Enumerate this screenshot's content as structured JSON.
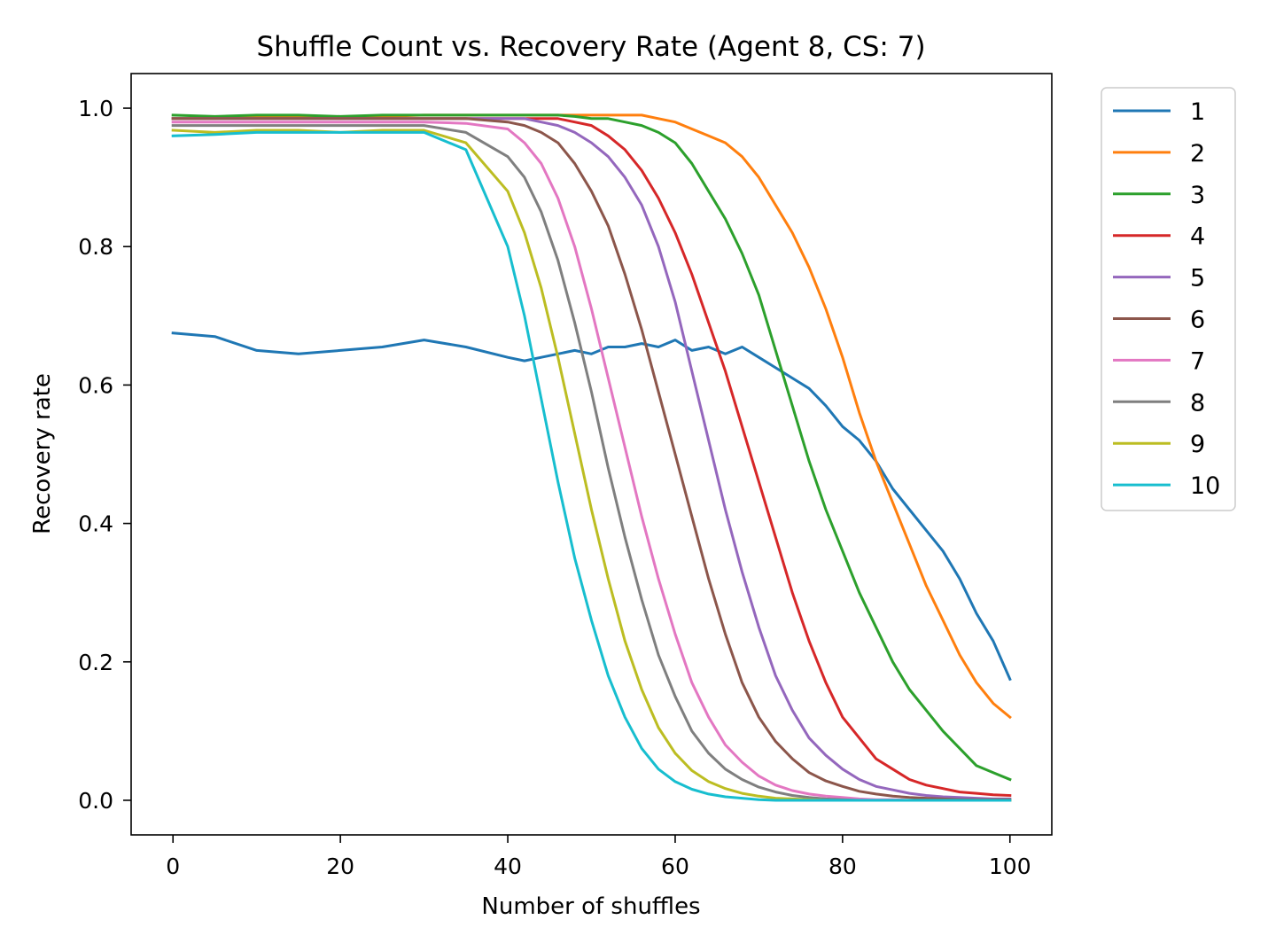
{
  "chart_data": {
    "type": "line",
    "title": "Shuffle Count vs. Recovery Rate (Agent 8, CS: 7)",
    "xlabel": "Number of shuffles",
    "ylabel": "Recovery rate",
    "xlim": [
      -5,
      105
    ],
    "ylim": [
      -0.05,
      1.05
    ],
    "xticks": [
      0,
      20,
      40,
      60,
      80,
      100
    ],
    "xtick_labels": [
      "0",
      "20",
      "40",
      "60",
      "80",
      "100"
    ],
    "yticks": [
      0.0,
      0.2,
      0.4,
      0.6,
      0.8,
      1.0
    ],
    "ytick_labels": [
      "0.0",
      "0.2",
      "0.4",
      "0.6",
      "0.8",
      "1.0"
    ],
    "grid": false,
    "legend_position": "outside-right-top",
    "x": [
      0,
      5,
      10,
      15,
      20,
      25,
      30,
      35,
      40,
      42,
      44,
      46,
      48,
      50,
      52,
      54,
      56,
      58,
      60,
      62,
      64,
      66,
      68,
      70,
      72,
      74,
      76,
      78,
      80,
      82,
      84,
      86,
      88,
      90,
      92,
      94,
      96,
      98,
      100
    ],
    "series": [
      {
        "name": "1",
        "color": "#1f77b4",
        "values": [
          0.675,
          0.67,
          0.65,
          0.645,
          0.65,
          0.655,
          0.665,
          0.655,
          0.64,
          0.635,
          0.64,
          0.645,
          0.65,
          0.645,
          0.655,
          0.655,
          0.66,
          0.655,
          0.665,
          0.65,
          0.655,
          0.645,
          0.655,
          0.64,
          0.625,
          0.61,
          0.595,
          0.57,
          0.54,
          0.52,
          0.49,
          0.45,
          0.42,
          0.39,
          0.36,
          0.32,
          0.27,
          0.23,
          0.175
        ]
      },
      {
        "name": "2",
        "color": "#ff7f0e",
        "values": [
          0.985,
          0.985,
          0.988,
          0.988,
          0.985,
          0.988,
          0.99,
          0.99,
          0.99,
          0.99,
          0.99,
          0.99,
          0.99,
          0.99,
          0.99,
          0.99,
          0.99,
          0.985,
          0.98,
          0.97,
          0.96,
          0.95,
          0.93,
          0.9,
          0.86,
          0.82,
          0.77,
          0.71,
          0.64,
          0.56,
          0.49,
          0.43,
          0.37,
          0.31,
          0.26,
          0.21,
          0.17,
          0.14,
          0.12
        ]
      },
      {
        "name": "3",
        "color": "#2ca02c",
        "values": [
          0.99,
          0.988,
          0.99,
          0.99,
          0.988,
          0.99,
          0.99,
          0.99,
          0.99,
          0.99,
          0.99,
          0.99,
          0.988,
          0.985,
          0.985,
          0.98,
          0.975,
          0.965,
          0.95,
          0.92,
          0.88,
          0.84,
          0.79,
          0.73,
          0.65,
          0.57,
          0.49,
          0.42,
          0.36,
          0.3,
          0.25,
          0.2,
          0.16,
          0.13,
          0.1,
          0.075,
          0.05,
          0.04,
          0.03
        ]
      },
      {
        "name": "4",
        "color": "#d62728",
        "values": [
          0.985,
          0.985,
          0.985,
          0.985,
          0.985,
          0.985,
          0.985,
          0.985,
          0.985,
          0.985,
          0.985,
          0.985,
          0.98,
          0.975,
          0.96,
          0.94,
          0.91,
          0.87,
          0.82,
          0.76,
          0.69,
          0.62,
          0.54,
          0.46,
          0.38,
          0.3,
          0.23,
          0.17,
          0.12,
          0.09,
          0.06,
          0.045,
          0.03,
          0.022,
          0.017,
          0.012,
          0.01,
          0.008,
          0.007
        ]
      },
      {
        "name": "5",
        "color": "#9467bd",
        "values": [
          0.985,
          0.985,
          0.985,
          0.985,
          0.985,
          0.985,
          0.985,
          0.985,
          0.985,
          0.985,
          0.98,
          0.975,
          0.965,
          0.95,
          0.93,
          0.9,
          0.86,
          0.8,
          0.72,
          0.62,
          0.52,
          0.42,
          0.33,
          0.25,
          0.18,
          0.13,
          0.09,
          0.065,
          0.045,
          0.03,
          0.02,
          0.015,
          0.01,
          0.007,
          0.005,
          0.004,
          0.003,
          0.002,
          0.002
        ]
      },
      {
        "name": "6",
        "color": "#8c564b",
        "values": [
          0.985,
          0.985,
          0.985,
          0.985,
          0.985,
          0.985,
          0.985,
          0.985,
          0.98,
          0.975,
          0.965,
          0.95,
          0.92,
          0.88,
          0.83,
          0.76,
          0.68,
          0.59,
          0.5,
          0.41,
          0.32,
          0.24,
          0.17,
          0.12,
          0.085,
          0.06,
          0.04,
          0.028,
          0.02,
          0.013,
          0.009,
          0.006,
          0.004,
          0.003,
          0.002,
          0.001,
          0.001,
          0.001,
          0.001
        ]
      },
      {
        "name": "7",
        "color": "#e377c2",
        "values": [
          0.98,
          0.98,
          0.98,
          0.98,
          0.98,
          0.98,
          0.98,
          0.978,
          0.97,
          0.95,
          0.92,
          0.87,
          0.8,
          0.71,
          0.61,
          0.51,
          0.41,
          0.32,
          0.24,
          0.17,
          0.12,
          0.08,
          0.055,
          0.035,
          0.022,
          0.014,
          0.009,
          0.006,
          0.004,
          0.002,
          0.001,
          0.001,
          0.0,
          0.0,
          0.0,
          0.0,
          0.0,
          0.0,
          0.0
        ]
      },
      {
        "name": "8",
        "color": "#7f7f7f",
        "values": [
          0.975,
          0.975,
          0.975,
          0.975,
          0.975,
          0.975,
          0.975,
          0.965,
          0.93,
          0.9,
          0.85,
          0.78,
          0.69,
          0.59,
          0.48,
          0.38,
          0.29,
          0.21,
          0.15,
          0.1,
          0.068,
          0.045,
          0.03,
          0.019,
          0.012,
          0.007,
          0.004,
          0.002,
          0.001,
          0.0,
          0.0,
          0.0,
          0.0,
          0.0,
          0.0,
          0.0,
          0.0,
          0.0,
          0.0
        ]
      },
      {
        "name": "9",
        "color": "#bcbd22",
        "values": [
          0.968,
          0.965,
          0.968,
          0.968,
          0.965,
          0.968,
          0.968,
          0.95,
          0.88,
          0.82,
          0.74,
          0.64,
          0.53,
          0.42,
          0.32,
          0.23,
          0.16,
          0.105,
          0.068,
          0.043,
          0.027,
          0.017,
          0.01,
          0.006,
          0.003,
          0.002,
          0.001,
          0.0,
          0.0,
          0.0,
          0.0,
          0.0,
          0.0,
          0.0,
          0.0,
          0.0,
          0.0,
          0.0,
          0.0
        ]
      },
      {
        "name": "10",
        "color": "#17becf",
        "values": [
          0.96,
          0.962,
          0.965,
          0.965,
          0.965,
          0.965,
          0.965,
          0.94,
          0.8,
          0.7,
          0.58,
          0.46,
          0.35,
          0.26,
          0.18,
          0.12,
          0.075,
          0.045,
          0.027,
          0.016,
          0.009,
          0.005,
          0.003,
          0.001,
          0.0,
          0.0,
          0.0,
          0.0,
          0.0,
          0.0,
          0.0,
          0.0,
          0.0,
          0.0,
          0.0,
          0.0,
          0.0,
          0.0,
          0.0
        ]
      }
    ]
  }
}
